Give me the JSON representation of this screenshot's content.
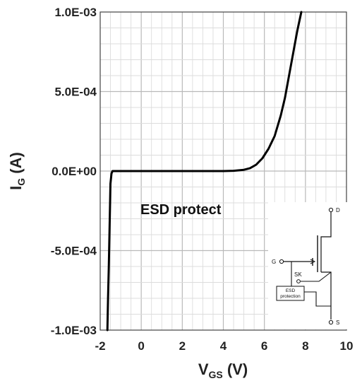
{
  "chart_data": {
    "type": "line",
    "title": "",
    "xlabel": {
      "main": "V",
      "sub": "GS",
      "suffix": " (V)"
    },
    "ylabel": {
      "main": "I",
      "sub": "G",
      "suffix": " (A)"
    },
    "xlim": [
      -2,
      10
    ],
    "ylim": [
      -0.001,
      0.001
    ],
    "x_ticks": [
      -2,
      0,
      2,
      4,
      6,
      8,
      10
    ],
    "x_tick_labels": [
      "-2",
      "0",
      "2",
      "4",
      "6",
      "8",
      "10"
    ],
    "y_ticks": [
      -0.001,
      -0.0005,
      0,
      0.0005,
      0.001
    ],
    "y_tick_labels": [
      "-1.0E-03",
      "-5.0E-04",
      "0.0E+00",
      "5.0E-04",
      "1.0E-03"
    ],
    "grid": true,
    "series": [
      {
        "color": "#000000",
        "x": [
          -1.65,
          -1.62,
          -1.58,
          -1.55,
          -1.52,
          -1.5,
          -1.45,
          -1.4,
          -1.3,
          -1.0,
          0,
          1,
          2,
          3,
          4,
          4.5,
          5.0,
          5.3,
          5.6,
          5.9,
          6.2,
          6.5,
          6.8,
          7.0,
          7.2,
          7.4,
          7.6,
          7.8
        ],
        "y": [
          -0.001,
          -0.0008,
          -0.0006,
          -0.0004,
          -0.0002,
          -8e-05,
          -1.5e-05,
          0,
          0,
          0,
          0,
          0,
          0,
          0,
          0,
          2e-06,
          8e-06,
          1.8e-05,
          4e-05,
          8e-05,
          0.00014,
          0.00022,
          0.00035,
          0.00046,
          0.0006,
          0.00074,
          0.00088,
          0.001
        ]
      }
    ],
    "annotations": {
      "main_text": "ESD protect",
      "inset": {
        "d_label": "D",
        "g_label": "G",
        "s_label": "S",
        "sk_label": "SK",
        "esd_line1": "ESD",
        "esd_line2": "protection"
      }
    }
  }
}
